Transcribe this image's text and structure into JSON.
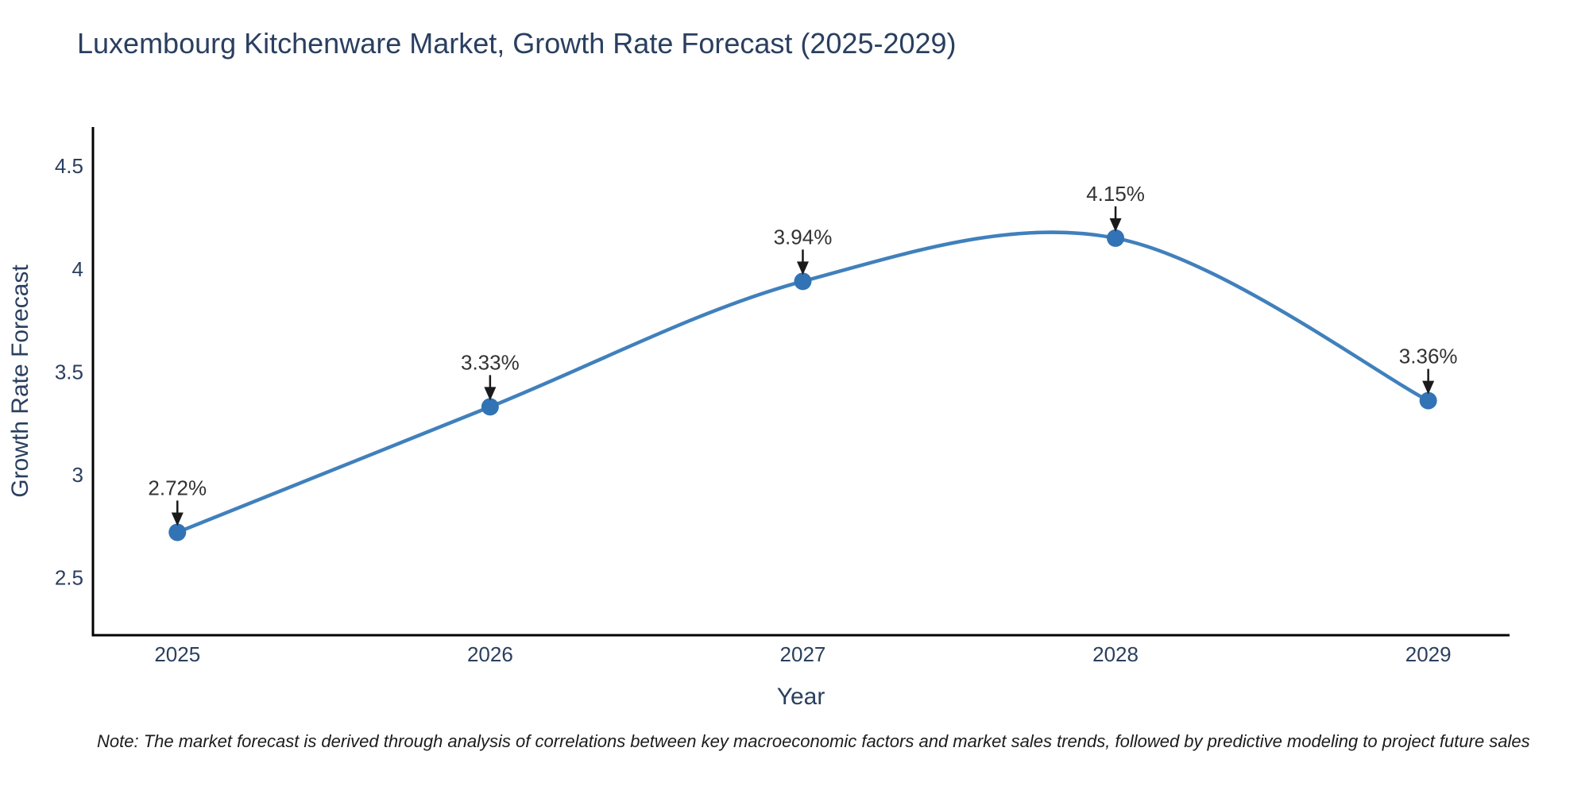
{
  "title": "Luxembourg Kitchenware Market, Growth Rate Forecast (2025-2029)",
  "note": "Note: The market forecast is derived through analysis of correlations between key macroeconomic factors and market sales trends, followed by predictive modeling to project future sales",
  "colors": {
    "background": "#ffffff",
    "line": "#4080bc",
    "marker": "#3273b5",
    "axis_line": "#000000",
    "tick_text": "#2a3f5f",
    "title_text": "#2a3f5f",
    "axis_title_text": "#2a3f5f",
    "annotation_text": "#333333",
    "arrow": "#1a1a1a",
    "note_text": "#1c1c1c"
  },
  "chart_data": {
    "type": "line",
    "line_shape": "spline",
    "title": "Luxembourg Kitchenware Market, Growth Rate Forecast (2025-2029)",
    "xlabel": "Year",
    "ylabel": "Growth Rate Forecast",
    "x": [
      2025,
      2026,
      2027,
      2028,
      2029
    ],
    "y": [
      2.72,
      3.33,
      3.94,
      4.15,
      3.36
    ],
    "point_labels": [
      "2.72%",
      "3.33%",
      "3.94%",
      "4.15%",
      "3.36%"
    ],
    "xtick_labels": [
      "2025",
      "2026",
      "2027",
      "2028",
      "2029"
    ],
    "ytick_values": [
      2.5,
      3,
      3.5,
      4,
      4.5
    ],
    "ytick_labels": [
      "2.5",
      "3",
      "3.5",
      "4",
      "4.5"
    ],
    "xlim": [
      2024.73,
      2029.26
    ],
    "ylim": [
      2.22,
      4.69
    ],
    "grid": false,
    "legend": false,
    "markers": true,
    "annotations": "percentage value labels with downward arrows above each data point"
  }
}
